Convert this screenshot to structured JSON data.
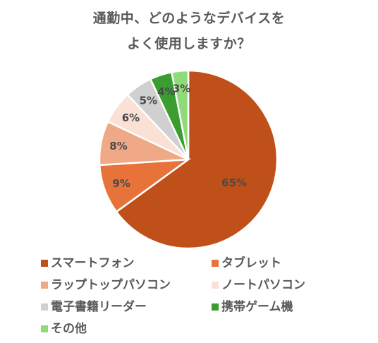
{
  "chart_data": {
    "type": "pie",
    "title_lines": [
      "通勤中、どのようなデバイスを",
      "よく使用しますか？"
    ],
    "slices": [
      {
        "label": "スマートフォン",
        "value": 65,
        "display": "65%",
        "color": "#C0501A"
      },
      {
        "label": "タブレット",
        "value": 9,
        "display": "9%",
        "color": "#E8733A"
      },
      {
        "label": "ラップトップパソコン",
        "value": 8,
        "display": "8%",
        "color": "#F0A987"
      },
      {
        "label": "ノートパソコン",
        "value": 6,
        "display": "6%",
        "color": "#FAE0D5"
      },
      {
        "label": "電子書籍リーダー",
        "value": 5,
        "display": "5%",
        "color": "#D0D0D0"
      },
      {
        "label": "携帯ゲーム機",
        "value": 4,
        "display": "4%",
        "color": "#3A9D2F"
      },
      {
        "label": "その他",
        "value": 3,
        "display": "3%",
        "color": "#8FDB7A"
      }
    ],
    "start_angle_deg": 0,
    "direction": "clockwise",
    "legend_position": "bottom"
  }
}
